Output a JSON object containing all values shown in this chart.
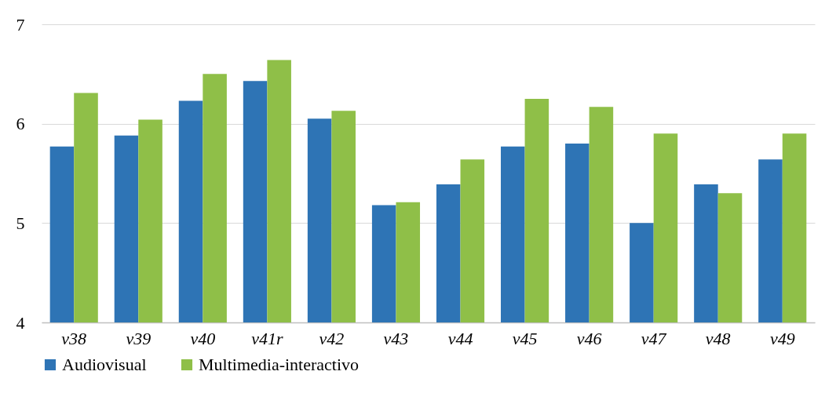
{
  "chart_data": {
    "type": "bar",
    "categories": [
      "v38",
      "v39",
      "v40",
      "v41r",
      "v42",
      "v43",
      "v44",
      "v45",
      "v46",
      "v47",
      "v48",
      "v49"
    ],
    "series": [
      {
        "name": "Audiovisual",
        "color": "#2e74b5",
        "values": [
          5.77,
          5.88,
          6.23,
          6.43,
          6.05,
          5.18,
          5.39,
          5.77,
          5.8,
          5.0,
          5.39,
          5.64
        ]
      },
      {
        "name": "Multimedia-interactivo",
        "color": "#8fbf48",
        "values": [
          6.31,
          6.04,
          6.5,
          6.64,
          6.13,
          5.21,
          5.64,
          6.25,
          6.17,
          5.9,
          5.3,
          5.9
        ]
      }
    ],
    "ylim": [
      4,
      7
    ],
    "yticks": [
      4,
      5,
      6,
      7
    ],
    "grid": "y",
    "legend": "bottom"
  }
}
